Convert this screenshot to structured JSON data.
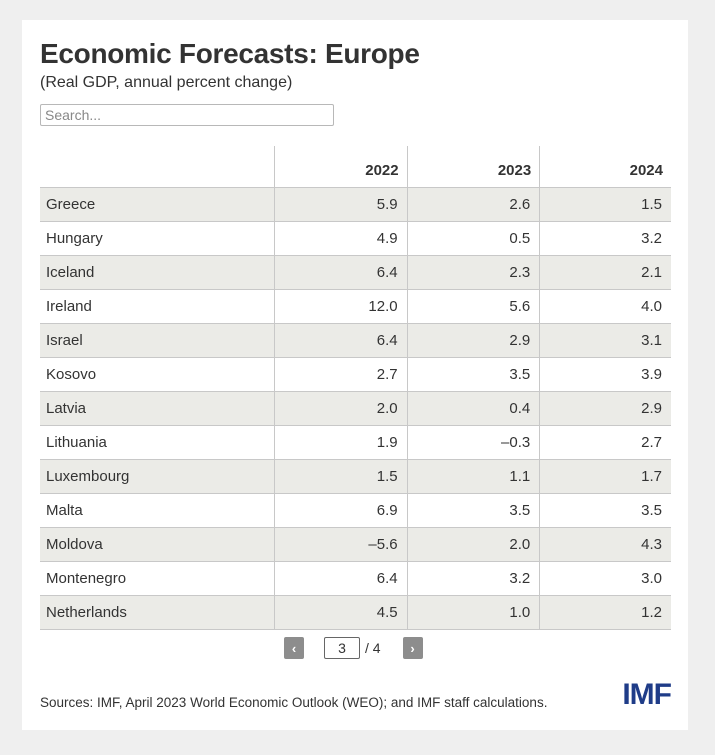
{
  "header": {
    "title": "Economic Forecasts: Europe",
    "subtitle": "(Real GDP, annual percent change)"
  },
  "search": {
    "placeholder": "Search...",
    "value": ""
  },
  "table": {
    "columns": [
      "",
      "2022",
      "2023",
      "2024"
    ],
    "rows": [
      {
        "country": "Greece",
        "y2022": "5.9",
        "y2023": "2.6",
        "y2024": "1.5"
      },
      {
        "country": "Hungary",
        "y2022": "4.9",
        "y2023": "0.5",
        "y2024": "3.2"
      },
      {
        "country": "Iceland",
        "y2022": "6.4",
        "y2023": "2.3",
        "y2024": "2.1"
      },
      {
        "country": "Ireland",
        "y2022": "12.0",
        "y2023": "5.6",
        "y2024": "4.0"
      },
      {
        "country": "Israel",
        "y2022": "6.4",
        "y2023": "2.9",
        "y2024": "3.1"
      },
      {
        "country": "Kosovo",
        "y2022": "2.7",
        "y2023": "3.5",
        "y2024": "3.9"
      },
      {
        "country": "Latvia",
        "y2022": "2.0",
        "y2023": "0.4",
        "y2024": "2.9"
      },
      {
        "country": "Lithuania",
        "y2022": "1.9",
        "y2023": "–0.3",
        "y2024": "2.7"
      },
      {
        "country": "Luxembourg",
        "y2022": "1.5",
        "y2023": "1.1",
        "y2024": "1.7"
      },
      {
        "country": "Malta",
        "y2022": "6.9",
        "y2023": "3.5",
        "y2024": "3.5"
      },
      {
        "country": "Moldova",
        "y2022": "–5.6",
        "y2023": "2.0",
        "y2024": "4.3"
      },
      {
        "country": "Montenegro",
        "y2022": "6.4",
        "y2023": "3.2",
        "y2024": "3.0"
      },
      {
        "country": "Netherlands",
        "y2022": "4.5",
        "y2023": "1.0",
        "y2024": "1.2"
      }
    ]
  },
  "pagination": {
    "prev_icon": "‹",
    "next_icon": "›",
    "current_page": "3",
    "total_label": "/ 4"
  },
  "footer": {
    "source": "Sources: IMF, April 2023 World Economic Outlook (WEO); and IMF staff calculations.",
    "logo_text": "IMF"
  },
  "colors": {
    "row_shade": "#ebebe7",
    "brand_blue": "#1f3c88",
    "pager_button": "#8d8d8d"
  }
}
